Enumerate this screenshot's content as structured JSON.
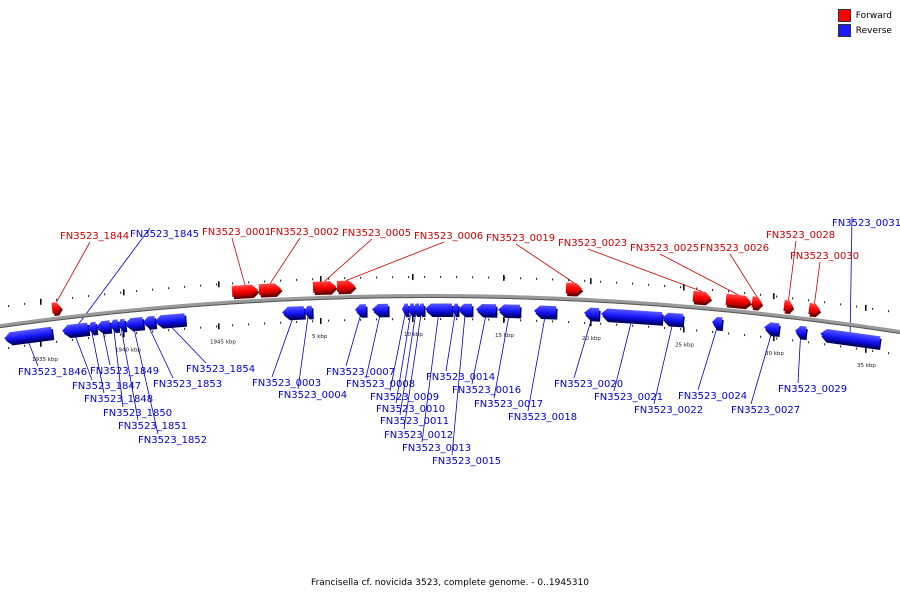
{
  "title": "Francisella cf. novicida 3523, complete genome. - 0..1945310",
  "colors": {
    "forward": "#ff0000",
    "reverse": "#1a1aff",
    "forward_label": "#cc0000",
    "reverse_label": "#0000cc",
    "backbone": "#888888"
  },
  "legend": [
    {
      "label": "Forward",
      "color": "#ff0000"
    },
    {
      "label": "Reverse",
      "color": "#1a1aff"
    }
  ],
  "ticks": [
    "1935 kbp",
    "1940 kbp",
    "1945 kbp",
    "5 kbp",
    "10 kbp",
    "15 kbp",
    "20 kbp",
    "25 kbp",
    "30 kbp",
    "35 kbp"
  ],
  "genes": [
    {
      "id": "FN3523_1844",
      "strand": "+"
    },
    {
      "id": "FN3523_1845",
      "strand": "-"
    },
    {
      "id": "FN3523_1846",
      "strand": "-"
    },
    {
      "id": "FN3523_1847",
      "strand": "-"
    },
    {
      "id": "FN3523_1848",
      "strand": "-"
    },
    {
      "id": "FN3523_1849",
      "strand": "-"
    },
    {
      "id": "FN3523_1850",
      "strand": "-"
    },
    {
      "id": "FN3523_1851",
      "strand": "-"
    },
    {
      "id": "FN3523_1852",
      "strand": "-"
    },
    {
      "id": "FN3523_1853",
      "strand": "-"
    },
    {
      "id": "FN3523_1854",
      "strand": "-"
    },
    {
      "id": "FN3523_0001",
      "strand": "+"
    },
    {
      "id": "FN3523_0002",
      "strand": "+"
    },
    {
      "id": "FN3523_0003",
      "strand": "-"
    },
    {
      "id": "FN3523_0004",
      "strand": "-"
    },
    {
      "id": "FN3523_0005",
      "strand": "+"
    },
    {
      "id": "FN3523_0006",
      "strand": "+"
    },
    {
      "id": "FN3523_0007",
      "strand": "-"
    },
    {
      "id": "FN3523_0008",
      "strand": "-"
    },
    {
      "id": "FN3523_0009",
      "strand": "-"
    },
    {
      "id": "FN3523_0010",
      "strand": "-"
    },
    {
      "id": "FN3523_0011",
      "strand": "-"
    },
    {
      "id": "FN3523_0012",
      "strand": "-"
    },
    {
      "id": "FN3523_0013",
      "strand": "-"
    },
    {
      "id": "FN3523_0014",
      "strand": "-"
    },
    {
      "id": "FN3523_0015",
      "strand": "-"
    },
    {
      "id": "FN3523_0016",
      "strand": "-"
    },
    {
      "id": "FN3523_0017",
      "strand": "-"
    },
    {
      "id": "FN3523_0018",
      "strand": "-"
    },
    {
      "id": "FN3523_0019",
      "strand": "+"
    },
    {
      "id": "FN3523_0020",
      "strand": "-"
    },
    {
      "id": "FN3523_0021",
      "strand": "-"
    },
    {
      "id": "FN3523_0022",
      "strand": "-"
    },
    {
      "id": "FN3523_0023",
      "strand": "+"
    },
    {
      "id": "FN3523_0024",
      "strand": "-"
    },
    {
      "id": "FN3523_0025",
      "strand": "+"
    },
    {
      "id": "FN3523_0026",
      "strand": "+"
    },
    {
      "id": "FN3523_0027",
      "strand": "-"
    },
    {
      "id": "FN3523_0028",
      "strand": "+"
    },
    {
      "id": "FN3523_0029",
      "strand": "-"
    },
    {
      "id": "FN3523_0030",
      "strand": "+"
    },
    {
      "id": "FN3523_0031",
      "strand": "-"
    }
  ]
}
